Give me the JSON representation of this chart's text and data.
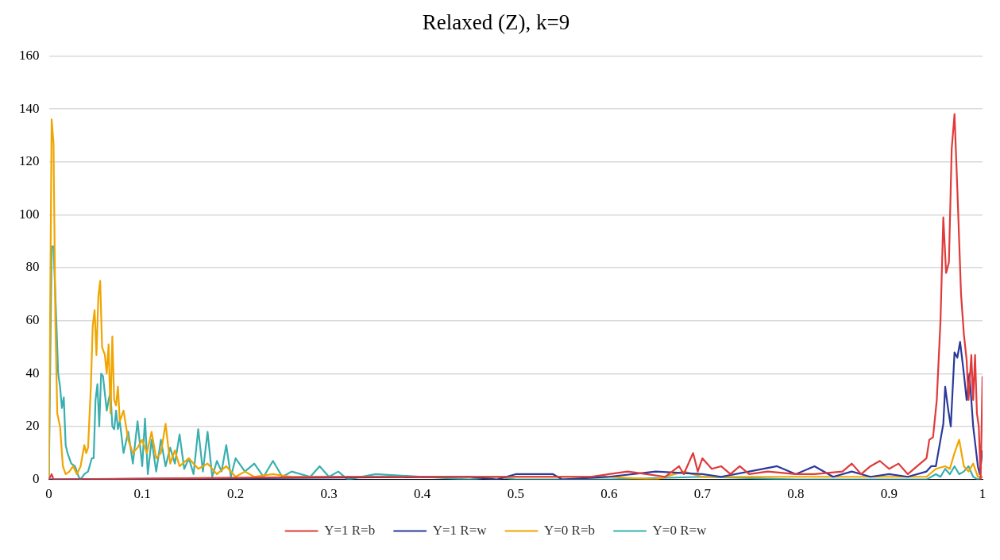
{
  "chart_data": {
    "type": "line",
    "title": "Relaxed (Z), k=9",
    "xlim": [
      0,
      1
    ],
    "xticks": [
      0,
      0.1,
      0.2,
      0.3,
      0.4,
      0.5,
      0.6,
      0.7,
      0.8,
      0.9,
      1
    ],
    "ylim": [
      0,
      160
    ],
    "yticks": [
      0,
      20,
      40,
      60,
      80,
      100,
      120,
      140,
      160
    ],
    "grid": "y",
    "legend": "bottom",
    "marker": "none",
    "line_style": "solid",
    "series": [
      {
        "name": "Y=1 R=b",
        "color": "#e03a3a",
        "x": [
          0,
          0.003,
          0.005,
          0.3,
          0.58,
          0.6,
          0.62,
          0.64,
          0.66,
          0.675,
          0.68,
          0.69,
          0.695,
          0.7,
          0.71,
          0.72,
          0.73,
          0.74,
          0.75,
          0.77,
          0.8,
          0.82,
          0.85,
          0.86,
          0.87,
          0.88,
          0.89,
          0.9,
          0.91,
          0.92,
          0.93,
          0.94,
          0.943,
          0.947,
          0.951,
          0.955,
          0.958,
          0.961,
          0.964,
          0.967,
          0.97,
          0.973,
          0.977,
          0.98,
          0.983,
          0.985,
          0.988,
          0.99,
          0.992,
          0.994,
          0.996,
          0.998,
          1
        ],
        "values": [
          0,
          2,
          0,
          1,
          1,
          2,
          3,
          2,
          1,
          5,
          2,
          10,
          3,
          8,
          4,
          5,
          2,
          5,
          2,
          3,
          2,
          2,
          3,
          6,
          2,
          5,
          7,
          4,
          6,
          2,
          5,
          8,
          15,
          16,
          30,
          60,
          99,
          78,
          82,
          125,
          138,
          110,
          70,
          55,
          45,
          30,
          47,
          30,
          47,
          25,
          20,
          0,
          39
        ]
      },
      {
        "name": "Y=1 R=w",
        "color": "#2a3a9a",
        "x": [
          0,
          0.45,
          0.48,
          0.5,
          0.54,
          0.55,
          0.6,
          0.65,
          0.7,
          0.72,
          0.75,
          0.78,
          0.8,
          0.82,
          0.84,
          0.86,
          0.88,
          0.9,
          0.92,
          0.94,
          0.945,
          0.95,
          0.955,
          0.958,
          0.96,
          0.963,
          0.966,
          0.97,
          0.973,
          0.976,
          0.98,
          0.983,
          0.986,
          0.99,
          0.995,
          0.997,
          1
        ],
        "values": [
          0,
          1,
          0,
          2,
          2,
          0,
          1,
          3,
          2,
          1,
          3,
          5,
          2,
          5,
          1,
          3,
          1,
          2,
          1,
          3,
          5,
          5,
          15,
          21,
          35,
          27,
          20,
          48,
          46,
          52,
          40,
          30,
          40,
          20,
          5,
          2,
          11
        ]
      },
      {
        "name": "Y=0 R=b",
        "color": "#f0a500",
        "x": [
          0,
          0.003,
          0.005,
          0.007,
          0.009,
          0.012,
          0.015,
          0.018,
          0.022,
          0.026,
          0.03,
          0.034,
          0.038,
          0.04,
          0.042,
          0.045,
          0.047,
          0.049,
          0.051,
          0.053,
          0.055,
          0.057,
          0.06,
          0.062,
          0.064,
          0.066,
          0.068,
          0.07,
          0.072,
          0.074,
          0.076,
          0.08,
          0.085,
          0.09,
          0.095,
          0.1,
          0.105,
          0.11,
          0.115,
          0.12,
          0.125,
          0.13,
          0.135,
          0.14,
          0.15,
          0.16,
          0.17,
          0.18,
          0.19,
          0.2,
          0.21,
          0.22,
          0.24,
          0.26,
          0.3,
          0.6,
          0.65,
          0.68,
          0.7,
          0.8,
          0.94,
          0.95,
          0.96,
          0.965,
          0.97,
          0.975,
          0.98,
          0.985,
          0.99,
          0.995,
          1
        ],
        "values": [
          0,
          136,
          127,
          60,
          25,
          20,
          5,
          2,
          3,
          5,
          2,
          5,
          13,
          10,
          12,
          35,
          58,
          64,
          47,
          69,
          75,
          50,
          47,
          40,
          51,
          25,
          54,
          30,
          28,
          35,
          22,
          26,
          15,
          10,
          12,
          15,
          10,
          18,
          8,
          10,
          21,
          6,
          11,
          5,
          8,
          4,
          6,
          2,
          5,
          1,
          3,
          1,
          2,
          1,
          1,
          1,
          0,
          3,
          1,
          1,
          1,
          4,
          5,
          4,
          10,
          15,
          5,
          3,
          6,
          1,
          1
        ]
      },
      {
        "name": "Y=0 R=w",
        "color": "#3aafaf",
        "x": [
          0,
          0.003,
          0.005,
          0.008,
          0.01,
          0.012,
          0.014,
          0.016,
          0.018,
          0.02,
          0.024,
          0.028,
          0.032,
          0.034,
          0.038,
          0.042,
          0.046,
          0.048,
          0.05,
          0.052,
          0.054,
          0.056,
          0.058,
          0.062,
          0.064,
          0.066,
          0.068,
          0.07,
          0.072,
          0.074,
          0.076,
          0.08,
          0.085,
          0.09,
          0.095,
          0.1,
          0.103,
          0.106,
          0.11,
          0.115,
          0.12,
          0.125,
          0.13,
          0.135,
          0.14,
          0.145,
          0.15,
          0.155,
          0.16,
          0.165,
          0.17,
          0.175,
          0.18,
          0.185,
          0.19,
          0.195,
          0.2,
          0.21,
          0.22,
          0.23,
          0.24,
          0.25,
          0.26,
          0.28,
          0.29,
          0.3,
          0.31,
          0.32,
          0.35,
          0.4,
          0.45,
          0.48,
          0.5,
          0.6,
          0.7,
          0.8,
          0.9,
          0.94,
          0.95,
          0.955,
          0.96,
          0.965,
          0.97,
          0.975,
          0.98,
          0.985,
          0.99,
          0.995,
          1
        ],
        "values": [
          0,
          88,
          88,
          60,
          40,
          35,
          27,
          31,
          13,
          10,
          6,
          5,
          1,
          0,
          2,
          3,
          8,
          8,
          30,
          36,
          20,
          40,
          39,
          26,
          30,
          33,
          20,
          19,
          26,
          19,
          22,
          10,
          18,
          6,
          22,
          5,
          23,
          2,
          15,
          3,
          15,
          5,
          12,
          6,
          17,
          4,
          8,
          2,
          19,
          3,
          18,
          1,
          7,
          3,
          13,
          1,
          8,
          3,
          6,
          1,
          7,
          1,
          3,
          1,
          5,
          1,
          3,
          0,
          2,
          1,
          0,
          1,
          0,
          0,
          1,
          0,
          0,
          0,
          2,
          1,
          4,
          2,
          5,
          2,
          3,
          5,
          1,
          0,
          1
        ]
      }
    ]
  }
}
